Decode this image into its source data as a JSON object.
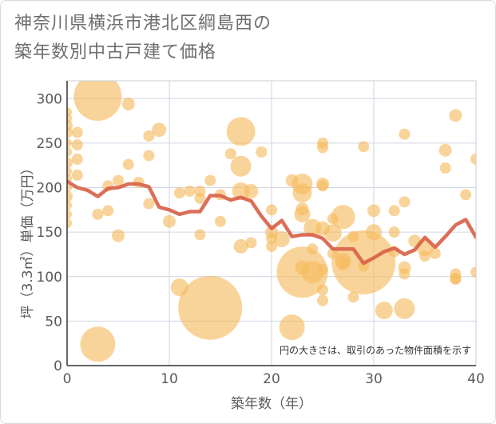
{
  "chart_data": {
    "type": "scatter",
    "title_lines": [
      "神奈川県横浜市港北区綱島西の",
      "築年数別中古戸建て価格"
    ],
    "xlabel": "築年数（年）",
    "ylabel": "坪（3.3㎡）単価（万円）",
    "xlim": [
      0,
      40
    ],
    "ylim": [
      0,
      320
    ],
    "xticks": [
      "0",
      "10",
      "20",
      "30",
      "40"
    ],
    "yticks": [
      "0",
      "50",
      "100",
      "150",
      "200",
      "250",
      "300"
    ],
    "grid": true,
    "note": "円の大きさは、取引のあった物件面積を示す",
    "colors": {
      "bubble": "#f5b95c",
      "line": "#d9624a",
      "grid": "#d0d6e2",
      "plot_bg": "#eef1f6"
    },
    "series": [
      {
        "kind": "bubble",
        "points": [
          [
            0,
            285,
            6
          ],
          [
            0,
            278,
            6
          ],
          [
            0,
            270,
            7
          ],
          [
            0,
            262,
            7
          ],
          [
            0,
            250,
            6
          ],
          [
            0,
            240,
            6
          ],
          [
            0,
            228,
            7
          ],
          [
            0,
            218,
            6
          ],
          [
            0,
            210,
            6
          ],
          [
            0,
            200,
            6
          ],
          [
            0,
            190,
            7
          ],
          [
            0,
            180,
            6
          ],
          [
            0,
            170,
            6
          ],
          [
            0,
            160,
            6
          ],
          [
            1,
            262,
            7
          ],
          [
            1,
            248,
            7
          ],
          [
            1,
            232,
            7
          ],
          [
            1,
            214,
            7
          ],
          [
            3,
            302,
            30
          ],
          [
            3,
            170,
            7
          ],
          [
            3,
            24,
            22
          ],
          [
            4,
            174,
            7
          ],
          [
            4,
            202,
            7
          ],
          [
            5,
            208,
            7
          ],
          [
            5,
            146,
            8
          ],
          [
            6,
            294,
            8
          ],
          [
            6,
            226,
            7
          ],
          [
            7,
            206,
            7
          ],
          [
            8,
            258,
            7
          ],
          [
            8,
            236,
            7
          ],
          [
            8,
            182,
            7
          ],
          [
            9,
            265,
            9
          ],
          [
            10,
            162,
            8
          ],
          [
            11,
            194,
            7
          ],
          [
            11,
            88,
            11
          ],
          [
            12,
            196,
            7
          ],
          [
            13,
            196,
            7
          ],
          [
            13,
            188,
            7
          ],
          [
            13,
            147,
            7
          ],
          [
            14,
            208,
            7
          ],
          [
            14,
            65,
            40
          ],
          [
            15,
            192,
            7
          ],
          [
            15,
            162,
            7
          ],
          [
            16,
            238,
            7
          ],
          [
            17,
            263,
            18
          ],
          [
            17,
            224,
            13
          ],
          [
            17,
            196,
            11
          ],
          [
            17,
            134,
            9
          ],
          [
            18,
            196,
            9
          ],
          [
            18,
            138,
            7
          ],
          [
            19,
            240,
            7
          ],
          [
            20,
            175,
            7
          ],
          [
            20,
            150,
            8
          ],
          [
            20,
            143,
            7
          ],
          [
            20,
            134,
            7
          ],
          [
            21,
            142,
            10
          ],
          [
            22,
            208,
            8
          ],
          [
            22,
            43,
            16
          ],
          [
            23,
            204,
            13
          ],
          [
            23,
            194,
            12
          ],
          [
            23,
            176,
            8
          ],
          [
            23,
            170,
            10
          ],
          [
            23,
            105,
            32
          ],
          [
            23,
            110,
            9
          ],
          [
            24,
            155,
            11
          ],
          [
            24,
            131,
            7
          ],
          [
            24,
            105,
            14
          ],
          [
            25,
            250,
            7
          ],
          [
            25,
            245,
            7
          ],
          [
            25,
            204,
            8
          ],
          [
            25,
            202,
            7
          ],
          [
            25,
            154,
            9
          ],
          [
            25,
            108,
            7
          ],
          [
            25,
            85,
            7
          ],
          [
            25,
            73,
            7
          ],
          [
            26,
            165,
            7
          ],
          [
            26,
            149,
            11
          ],
          [
            26,
            126,
            7
          ],
          [
            27,
            167,
            15
          ],
          [
            27,
            118,
            10
          ],
          [
            27,
            115,
            9
          ],
          [
            28,
            145,
            7
          ],
          [
            28,
            77,
            7
          ],
          [
            29,
            246,
            7
          ],
          [
            29,
            116,
            40
          ],
          [
            29,
            112,
            7
          ],
          [
            30,
            174,
            8
          ],
          [
            30,
            150,
            10
          ],
          [
            31,
            62,
            11
          ],
          [
            32,
            174,
            7
          ],
          [
            32,
            150,
            7
          ],
          [
            32,
            128,
            7
          ],
          [
            33,
            260,
            7
          ],
          [
            33,
            184,
            7
          ],
          [
            33,
            110,
            8
          ],
          [
            33,
            103,
            7
          ],
          [
            33,
            64,
            13
          ],
          [
            34,
            140,
            8
          ],
          [
            35,
            133,
            11
          ],
          [
            35,
            123,
            7
          ],
          [
            36,
            126,
            7
          ],
          [
            37,
            242,
            8
          ],
          [
            37,
            222,
            7
          ],
          [
            38,
            281,
            8
          ],
          [
            38,
            103,
            7
          ],
          [
            38,
            98,
            7
          ],
          [
            38,
            97,
            7
          ],
          [
            39,
            192,
            7
          ],
          [
            40,
            232,
            7
          ],
          [
            40,
            105,
            7
          ]
        ]
      },
      {
        "kind": "line",
        "x": [
          0,
          1,
          2,
          3,
          4,
          5,
          6,
          7,
          8,
          9,
          10,
          11,
          12,
          13,
          14,
          15,
          16,
          17,
          18,
          19,
          20,
          21,
          22,
          23,
          24,
          25,
          26,
          27,
          28,
          29,
          30,
          31,
          32,
          33,
          34,
          35,
          36,
          37,
          38,
          39,
          40
        ],
        "y": [
          207,
          200,
          197,
          190,
          199,
          200,
          204,
          204,
          201,
          178,
          175,
          170,
          173,
          173,
          191,
          191,
          186,
          189,
          185,
          168,
          154,
          163,
          145,
          147,
          147,
          143,
          131,
          131,
          131,
          115,
          121,
          128,
          132,
          125,
          130,
          144,
          133,
          145,
          158,
          164,
          144
        ]
      }
    ]
  }
}
